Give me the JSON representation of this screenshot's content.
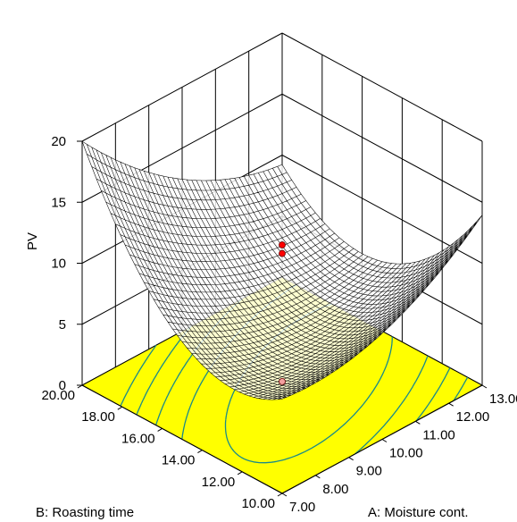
{
  "chart_data": {
    "type": "surface3d",
    "zlabel": "PV",
    "xlabel": "A: Moisture cont.",
    "ylabel": "B: Roasting time",
    "z_ticks": [
      "0",
      "5",
      "10",
      "15",
      "20"
    ],
    "a_ticks": [
      "7.00",
      "8.00",
      "9.00",
      "10.00",
      "11.00",
      "12.00",
      "13.00"
    ],
    "b_ticks": [
      "10.00",
      "12.00",
      "14.00",
      "16.00",
      "18.00",
      "20.00"
    ],
    "xlim": [
      7,
      13
    ],
    "ylim": [
      10,
      20
    ],
    "zlim": [
      0,
      20
    ],
    "surface_corners": [
      {
        "a": 7,
        "b": 20,
        "pv": 18.5
      },
      {
        "a": 13,
        "b": 20,
        "pv": 8.7
      },
      {
        "a": 7,
        "b": 10,
        "pv": 8.2
      },
      {
        "a": 13,
        "b": 10,
        "pv": 16.5
      }
    ],
    "surface_minimum": {
      "a": 10.5,
      "b": 14.5,
      "pv": 4.5
    },
    "design_points": [
      {
        "a": 10,
        "b": 15,
        "pv": 11.5
      },
      {
        "a": 10,
        "b": 15,
        "pv": 10.8
      },
      {
        "a": 10,
        "b": 15,
        "pv": 0.3
      }
    ],
    "colors": {
      "contour_fill": "#ffff00",
      "contour_lines": "#1a8a8a",
      "mesh": "#000000",
      "points": "#ff0000"
    }
  }
}
